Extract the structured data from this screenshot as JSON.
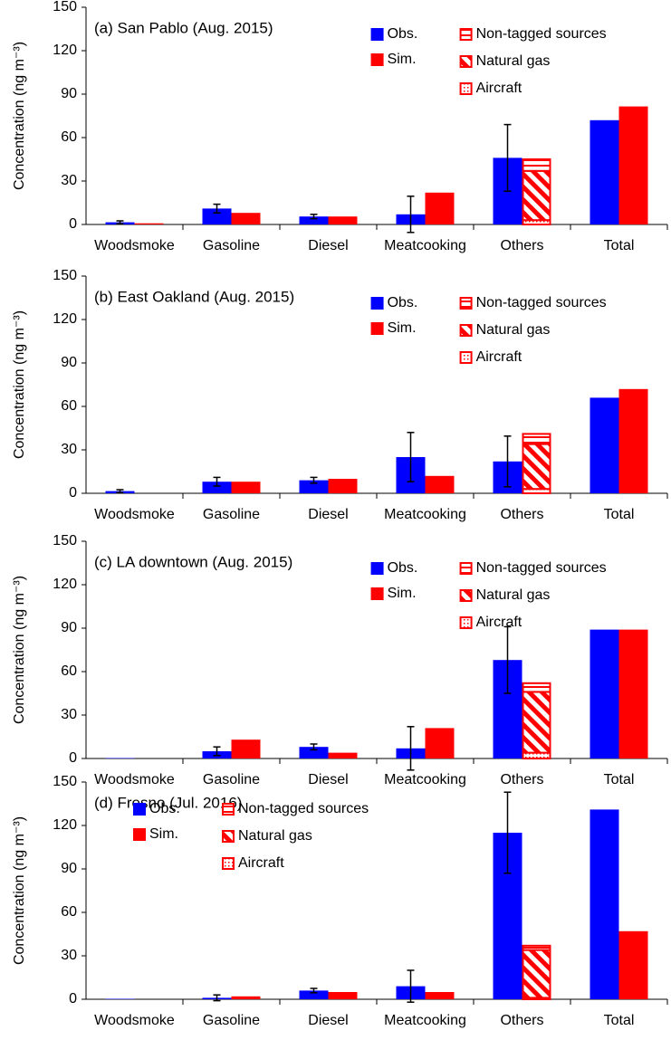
{
  "chart_data": [
    {
      "type": "bar",
      "title": "(a) San Pablo (Aug. 2015)",
      "y_label": "Concentration (ng m⁻³)",
      "categories": [
        "Woodsmoke",
        "Gasoline",
        "Diesel",
        "Meatcooking",
        "Others",
        "Total"
      ],
      "ylim": [
        0,
        150
      ],
      "yticks": [
        0,
        30,
        60,
        90,
        120,
        150
      ],
      "legend": "upper center",
      "series": [
        {
          "name": "Obs.",
          "color": "#0000ff",
          "values": [
            1.5,
            11,
            5.5,
            7,
            46,
            72
          ],
          "errors": [
            1,
            3,
            1.5,
            12.5,
            23,
            null
          ]
        },
        {
          "name": "Sim.",
          "color": "#ff0000",
          "values": [
            0.8,
            8,
            5.5,
            22,
            null,
            81.5
          ]
        },
        {
          "name": "Non-tagged sources",
          "color": "#ff0000",
          "hatch": "horizontal",
          "stack": "Sim.",
          "values": [
            null,
            null,
            null,
            null,
            8,
            null
          ]
        },
        {
          "name": "Natural gas",
          "color": "#ff0000",
          "hatch": "diagonal",
          "stack": "Sim.",
          "values": [
            null,
            null,
            null,
            null,
            34,
            null
          ]
        },
        {
          "name": "Aircraft",
          "color": "#ff0000",
          "hatch": "dots",
          "stack": "Sim.",
          "values": [
            null,
            null,
            null,
            null,
            3,
            null
          ]
        }
      ]
    },
    {
      "type": "bar",
      "title": "(b) East Oakland (Aug. 2015)",
      "y_label": "Concentration (ng m⁻³)",
      "categories": [
        "Woodsmoke",
        "Gasoline",
        "Diesel",
        "Meatcooking",
        "Others",
        "Total"
      ],
      "ylim": [
        0,
        150
      ],
      "yticks": [
        0,
        30,
        60,
        90,
        120,
        150
      ],
      "legend": "upper center",
      "series": [
        {
          "name": "Obs.",
          "color": "#0000ff",
          "values": [
            1.5,
            8,
            9,
            25,
            22,
            66
          ],
          "errors": [
            1,
            3,
            2,
            17,
            17.5,
            null
          ]
        },
        {
          "name": "Sim.",
          "color": "#ff0000",
          "values": [
            0,
            8,
            10,
            12,
            null,
            72
          ]
        },
        {
          "name": "Non-tagged sources",
          "color": "#ff0000",
          "hatch": "horizontal",
          "stack": "Sim.",
          "values": [
            null,
            null,
            null,
            null,
            7,
            null
          ]
        },
        {
          "name": "Natural gas",
          "color": "#ff0000",
          "hatch": "diagonal",
          "stack": "Sim.",
          "values": [
            null,
            null,
            null,
            null,
            31,
            null
          ]
        },
        {
          "name": "Aircraft",
          "color": "#ff0000",
          "hatch": "dots",
          "stack": "Sim.",
          "values": [
            null,
            null,
            null,
            null,
            3,
            null
          ]
        }
      ]
    },
    {
      "type": "bar",
      "title": "(c) LA downtown (Aug. 2015)",
      "y_label": "Concentration (ng m⁻³)",
      "categories": [
        "Woodsmoke",
        "Gasoline",
        "Diesel",
        "Meatcooking",
        "Others",
        "Total"
      ],
      "ylim": [
        0,
        150
      ],
      "yticks": [
        0,
        30,
        60,
        90,
        120,
        150
      ],
      "legend": "upper center",
      "series": [
        {
          "name": "Obs.",
          "color": "#0000ff",
          "values": [
            0.3,
            5,
            8,
            7,
            68,
            89
          ],
          "errors": [
            null,
            3,
            2,
            15,
            23,
            null
          ]
        },
        {
          "name": "Sim.",
          "color": "#ff0000",
          "values": [
            0,
            13,
            4,
            21,
            null,
            89
          ]
        },
        {
          "name": "Non-tagged sources",
          "color": "#ff0000",
          "hatch": "horizontal",
          "stack": "Sim.",
          "values": [
            null,
            null,
            null,
            null,
            6,
            null
          ]
        },
        {
          "name": "Natural gas",
          "color": "#ff0000",
          "hatch": "diagonal",
          "stack": "Sim.",
          "values": [
            null,
            null,
            null,
            null,
            42,
            null
          ]
        },
        {
          "name": "Aircraft",
          "color": "#ff0000",
          "hatch": "dots",
          "stack": "Sim.",
          "values": [
            null,
            null,
            null,
            null,
            4,
            null
          ]
        }
      ]
    },
    {
      "type": "bar",
      "title": "(d) Fresno (Jul. 2016)",
      "y_label": "Concentration (ng m⁻³)",
      "categories": [
        "Woodsmoke",
        "Gasoline",
        "Diesel",
        "Meatcooking",
        "Others",
        "Total"
      ],
      "ylim": [
        0,
        150
      ],
      "yticks": [
        0,
        30,
        60,
        90,
        120,
        150
      ],
      "legend": "upper left",
      "series": [
        {
          "name": "Obs.",
          "color": "#0000ff",
          "values": [
            0.3,
            1,
            6,
            9,
            115,
            131
          ],
          "errors": [
            null,
            2,
            1.5,
            11,
            28,
            null
          ]
        },
        {
          "name": "Sim.",
          "color": "#ff0000",
          "values": [
            0,
            2,
            5,
            5,
            null,
            47
          ]
        },
        {
          "name": "Non-tagged sources",
          "color": "#ff0000",
          "hatch": "horizontal",
          "stack": "Sim.",
          "values": [
            null,
            null,
            null,
            null,
            3,
            null
          ]
        },
        {
          "name": "Natural gas",
          "color": "#ff0000",
          "hatch": "diagonal",
          "stack": "Sim.",
          "values": [
            null,
            null,
            null,
            null,
            33,
            null
          ]
        },
        {
          "name": "Aircraft",
          "color": "#ff0000",
          "hatch": "dots",
          "stack": "Sim.",
          "values": [
            null,
            null,
            null,
            null,
            1,
            null
          ]
        }
      ]
    }
  ]
}
